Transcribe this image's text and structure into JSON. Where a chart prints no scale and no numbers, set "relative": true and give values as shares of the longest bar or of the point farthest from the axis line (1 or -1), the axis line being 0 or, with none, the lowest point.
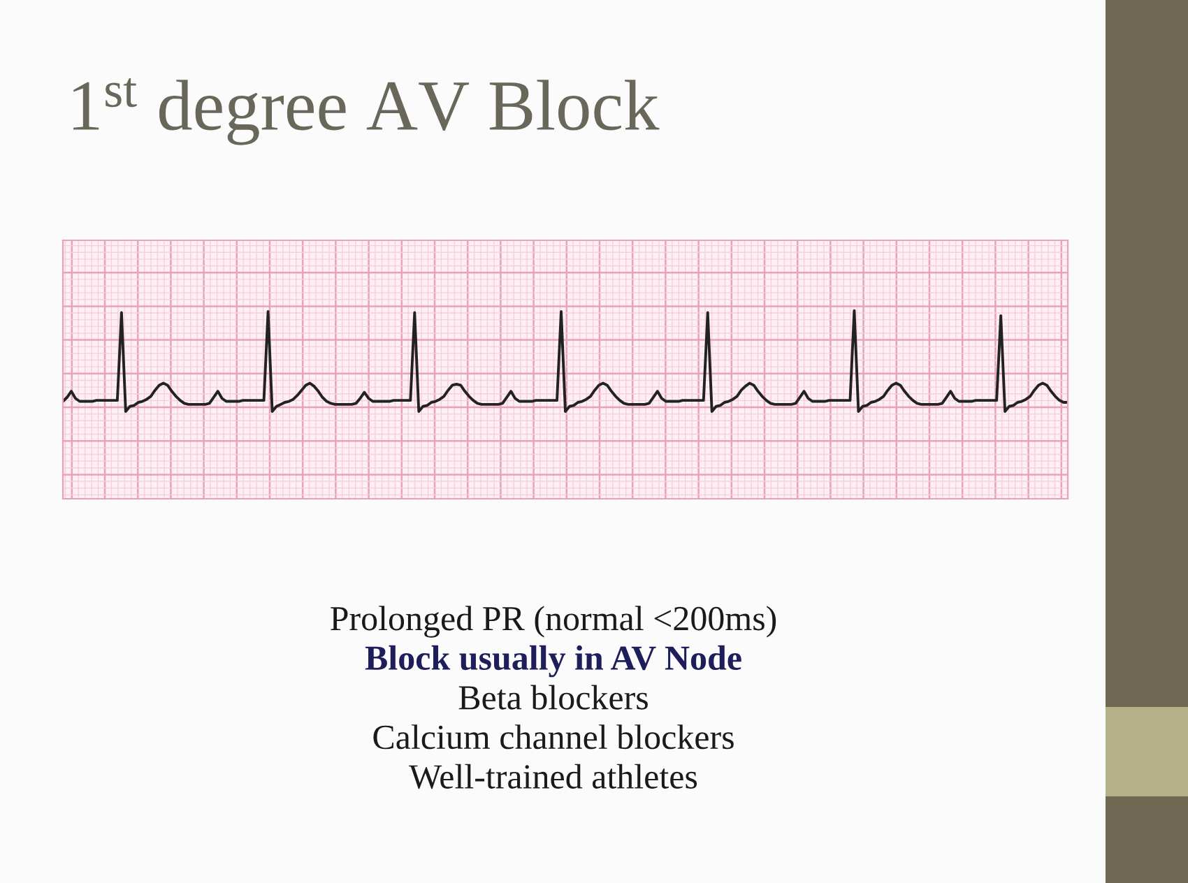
{
  "chart_data": {
    "type": "line",
    "title": "1$^{st}$ degree AV Block",
    "relative": true,
    "grid": true,
    "color": "#222222",
    "categories": [
      null,
      null,
      null,
      null,
      null,
      null,
      null,
      null,
      null,
      null,
      null,
      null,
      null,
      null,
      null,
      null,
      null,
      null,
      null,
      null,
      null,
      null,
      null,
      null,
      null,
      null,
      null,
      null,
      null,
      null,
      null,
      null,
      null,
      null,
      null,
      null,
      null,
      null,
      null,
      null,
      null,
      null,
      null,
      null,
      null,
      null,
      null,
      null,
      null,
      null,
      null,
      null,
      null,
      null,
      null,
      null,
      null,
      null,
      null,
      null,
      null,
      null,
      null,
      null,
      null,
      null,
      null,
      null,
      null,
      null,
      null,
      null,
      null,
      null,
      null,
      null,
      null,
      null,
      null,
      null,
      null,
      null,
      null,
      null,
      null,
      null,
      null,
      null,
      null,
      null,
      null,
      null,
      null,
      null,
      null,
      null,
      null,
      null,
      null,
      null,
      null,
      null,
      null,
      null,
      null,
      null,
      null,
      null,
      null,
      null,
      null,
      null,
      null,
      null,
      null,
      null,
      null,
      null,
      null,
      null,
      null,
      null,
      null,
      null,
      null,
      null,
      null,
      null,
      null,
      null,
      null,
      null,
      null,
      null,
      null,
      null,
      null,
      null,
      null,
      null,
      null,
      null,
      null,
      null,
      null,
      null,
      null,
      null,
      null,
      null,
      null,
      null,
      null,
      null,
      null,
      null,
      null,
      null,
      null,
      null,
      null,
      null,
      null,
      null,
      null,
      null,
      null,
      null,
      null,
      null,
      null,
      null,
      null,
      null,
      null,
      null,
      null,
      null,
      null,
      null,
      null,
      null,
      null,
      null,
      null,
      null,
      null,
      null,
      null,
      null,
      null,
      null,
      null,
      null,
      null,
      null,
      null,
      null,
      null,
      null,
      null,
      null,
      null,
      null,
      null,
      null,
      null,
      null,
      null,
      null,
      null,
      null,
      null,
      null,
      null,
      null,
      null,
      null,
      null,
      null,
      null,
      null,
      null,
      null,
      null,
      null,
      null,
      null,
      null,
      null,
      null,
      null,
      null,
      null,
      null,
      null,
      null,
      null,
      null,
      null,
      null
    ],
    "values": [
      0.1,
      0.14,
      0.2,
      0.13,
      0.1,
      0.1,
      0.1,
      0.1,
      0.11,
      0.11,
      0.11,
      0.11,
      0.11,
      0.11,
      0.98,
      0,
      0.05,
      0.06,
      0.09,
      0.1,
      0.12,
      0.15,
      0.21,
      0.26,
      0.28,
      0.26,
      0.2,
      0.15,
      0.11,
      0.08,
      0.07,
      0.07,
      0.07,
      0.07,
      0.07,
      0.08,
      0.14,
      0.2,
      0.13,
      0.1,
      0.1,
      0.1,
      0.1,
      0.11,
      0.11,
      0.11,
      0.11,
      0.11,
      0.11,
      0.99,
      0,
      0.05,
      0.07,
      0.09,
      0.1,
      0.12,
      0.16,
      0.21,
      0.26,
      0.28,
      0.25,
      0.2,
      0.14,
      0.1,
      0.08,
      0.07,
      0.07,
      0.07,
      0.07,
      0.07,
      0.08,
      0.13,
      0.19,
      0.13,
      0.1,
      0.1,
      0.1,
      0.1,
      0.1,
      0.11,
      0.11,
      0.11,
      0.11,
      0.11,
      0.98,
      0,
      0.05,
      0.06,
      0.09,
      0.1,
      0.12,
      0.15,
      0.21,
      0.26,
      0.27,
      0.26,
      0.2,
      0.15,
      0.11,
      0.08,
      0.07,
      0.07,
      0.07,
      0.07,
      0.07,
      0.08,
      0.14,
      0.2,
      0.13,
      0.1,
      0.1,
      0.1,
      0.1,
      0.11,
      0.11,
      0.11,
      0.11,
      0.11,
      0.11,
      0.99,
      0,
      0.05,
      0.06,
      0.09,
      0.1,
      0.12,
      0.15,
      0.21,
      0.26,
      0.28,
      0.26,
      0.2,
      0.15,
      0.11,
      0.08,
      0.07,
      0.07,
      0.07,
      0.07,
      0.07,
      0.08,
      0.14,
      0.2,
      0.13,
      0.1,
      0.1,
      0.1,
      0.1,
      0.11,
      0.11,
      0.11,
      0.11,
      0.11,
      0.11,
      0.98,
      0,
      0.05,
      0.06,
      0.09,
      0.1,
      0.12,
      0.15,
      0.21,
      0.25,
      0.28,
      0.26,
      0.2,
      0.15,
      0.11,
      0.08,
      0.07,
      0.07,
      0.07,
      0.07,
      0.07,
      0.08,
      0.14,
      0.2,
      0.13,
      0.1,
      0.1,
      0.1,
      0.1,
      0.11,
      0.11,
      0.11,
      0.11,
      0.11,
      0.11,
      1,
      0,
      0.05,
      0.06,
      0.09,
      0.1,
      0.12,
      0.15,
      0.21,
      0.26,
      0.28,
      0.26,
      0.2,
      0.15,
      0.11,
      0.08,
      0.07,
      0.07,
      0.07,
      0.07,
      0.07,
      0.08,
      0.14,
      0.2,
      0.13,
      0.1,
      0.1,
      0.1,
      0.1,
      0.11,
      0.11,
      0.11,
      0.11,
      0.11,
      0.11,
      0.95,
      0,
      0.05,
      0.06,
      0.09,
      0.1,
      0.12,
      0.15,
      0.21,
      0.26,
      0.28,
      0.26,
      0.2,
      0.15,
      0.11,
      0.09,
      0.09
    ],
    "annotations": [
      "Prolonged PR (normal <200ms)",
      "Block usually in AV Node",
      "Beta blockers",
      "Calcium channel blockers",
      "Well-trained athletes"
    ]
  }
}
